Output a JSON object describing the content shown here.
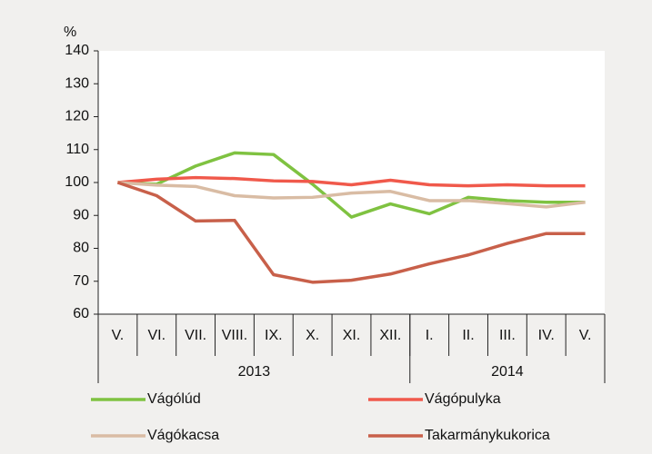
{
  "chart_data": {
    "type": "line",
    "y_unit": "%",
    "categories": [
      "V.",
      "VI.",
      "VII.",
      "VIII.",
      "IX.",
      "X.",
      "XI.",
      "XII.",
      "I.",
      "II.",
      "III.",
      "IV.",
      "V."
    ],
    "x_groups": [
      {
        "label": "2013",
        "span": 8
      },
      {
        "label": "2014",
        "span": 5
      }
    ],
    "ylim": [
      60,
      140
    ],
    "yticks": [
      60,
      70,
      80,
      90,
      100,
      110,
      120,
      130,
      140
    ],
    "series": [
      {
        "name": "Vágólúd",
        "color": "#7fc241",
        "values": [
          100,
          99.5,
          105,
          109,
          108.5,
          99.5,
          89.5,
          93.5,
          90.5,
          95.5,
          94.5,
          94,
          94
        ]
      },
      {
        "name": "Vágópulyka",
        "color": "#f0594b",
        "values": [
          100,
          101,
          101.5,
          101.2,
          100.5,
          100.3,
          99.3,
          100.7,
          99.3,
          99,
          99.3,
          99,
          99
        ]
      },
      {
        "name": "Vágókacsa",
        "color": "#d9bca4",
        "values": [
          100,
          99.2,
          98.8,
          96,
          95.3,
          95.5,
          96.8,
          97.3,
          94.5,
          94.5,
          93.6,
          92.6,
          94
        ]
      },
      {
        "name": "Takarmánykukorica",
        "color": "#c8604a",
        "values": [
          100,
          96,
          88.3,
          88.5,
          72,
          69.7,
          70.3,
          72.2,
          75.3,
          78,
          81.5,
          84.5,
          84.5
        ]
      }
    ]
  }
}
